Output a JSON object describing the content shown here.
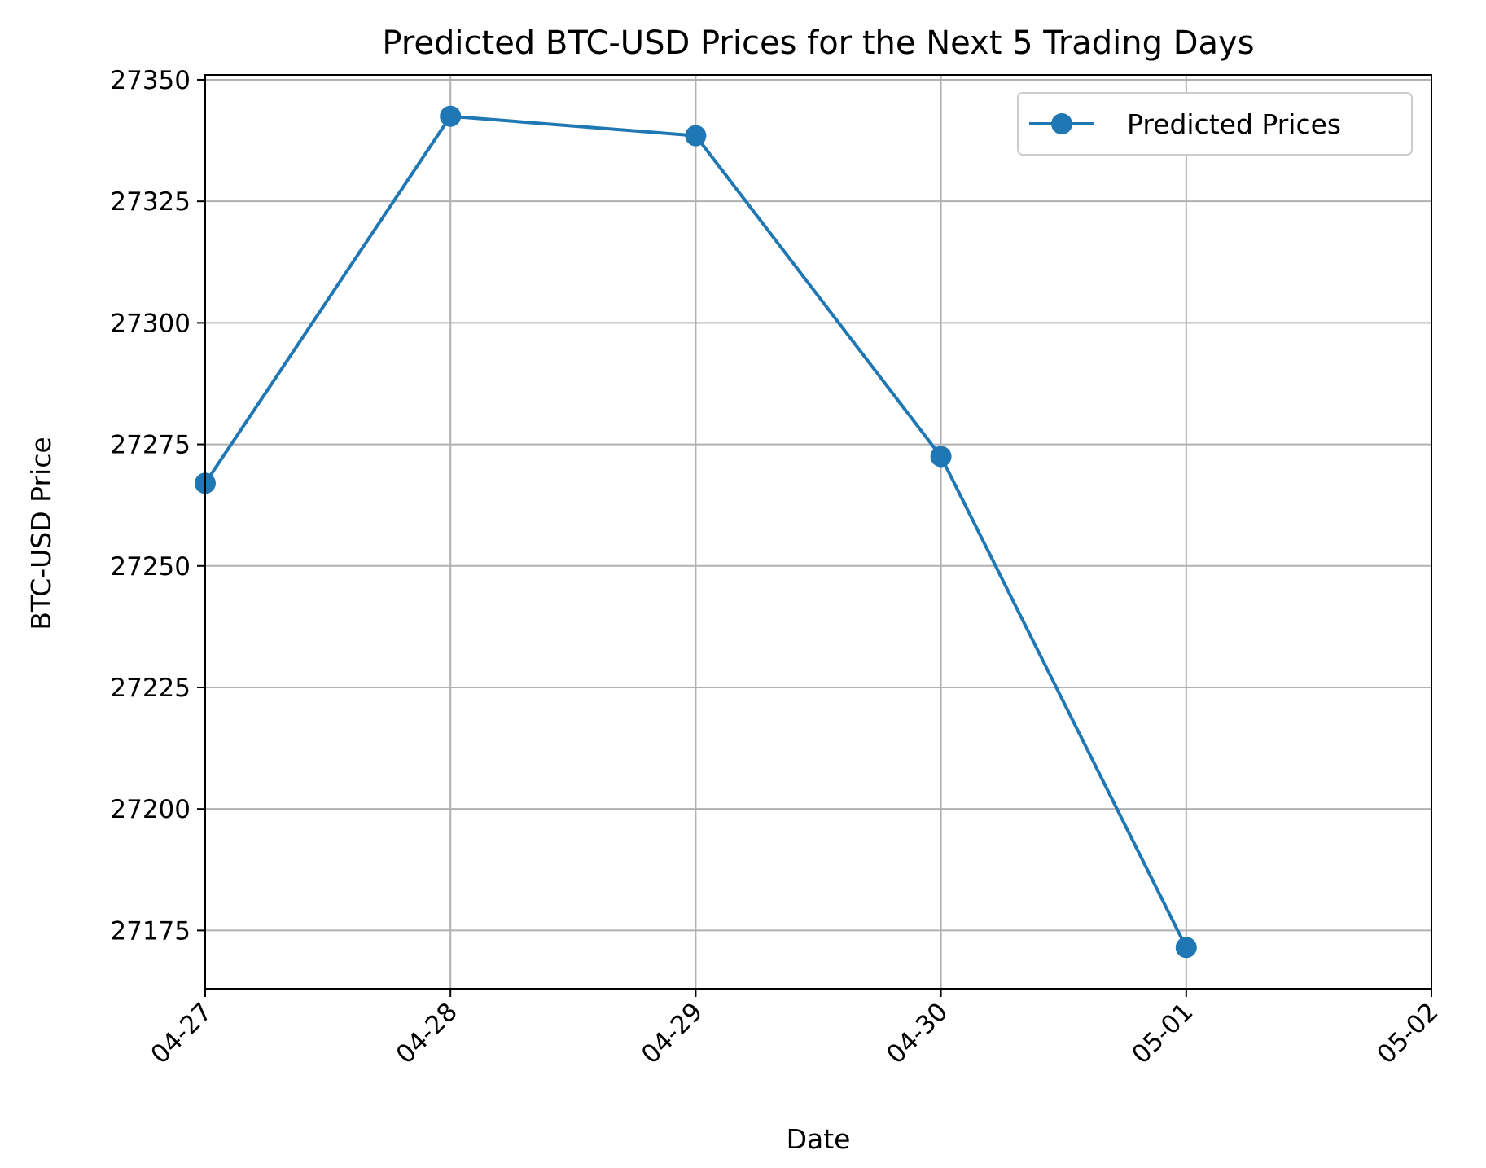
{
  "chart_data": {
    "type": "line",
    "title": "Predicted BTC-USD Prices for the Next 5 Trading Days",
    "xlabel": "Date",
    "ylabel": "BTC-USD Price",
    "x_tick_labels": [
      "04-27",
      "04-28",
      "04-29",
      "04-30",
      "05-01",
      "05-02"
    ],
    "y_ticks": [
      27175,
      27200,
      27225,
      27250,
      27275,
      27300,
      27325,
      27350
    ],
    "xlim": [
      "04-27",
      "05-02"
    ],
    "ylim": [
      27163,
      27351
    ],
    "grid": true,
    "legend_position": "top-right",
    "series": [
      {
        "name": "Predicted Prices",
        "color": "#1f77b4",
        "marker": "circle",
        "x": [
          "04-27",
          "04-28",
          "04-29",
          "04-30",
          "05-01"
        ],
        "values": [
          27267,
          27342.5,
          27338.5,
          27272.5,
          27171.5
        ]
      }
    ]
  }
}
